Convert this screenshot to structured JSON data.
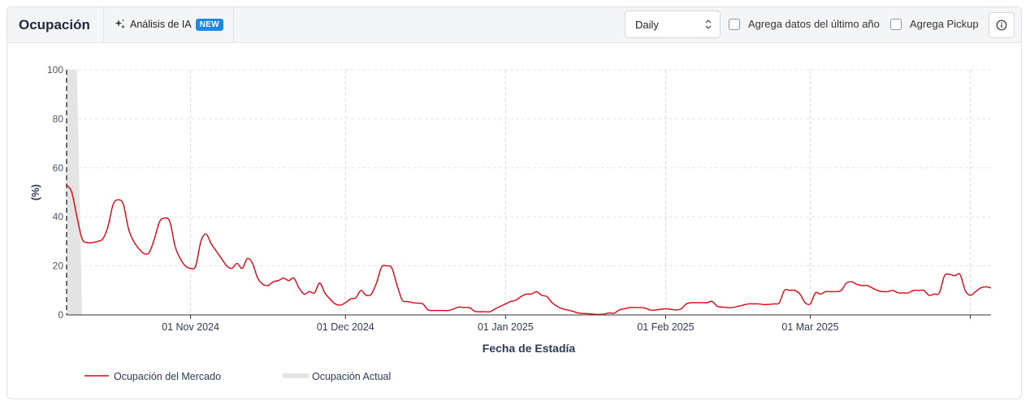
{
  "header": {
    "title": "Ocupación",
    "ai_label": "Análisis de IA",
    "ai_badge": "NEW",
    "granularity": "Daily",
    "check_last_year": "Agrega datos del último año",
    "check_pickup": "Agrega Pickup"
  },
  "colors": {
    "market_line": "#e3000f",
    "actual_fill": "#e4e4e4",
    "accent_badge": "#1e88e5"
  },
  "icons": [
    "sparkle-icon",
    "chevron-updown-icon",
    "info-icon"
  ],
  "chart_data": {
    "type": "line",
    "xlabel": "Fecha de Estadía",
    "ylabel": "(%)",
    "ylim": [
      0,
      100
    ],
    "yticks": [
      0,
      20,
      40,
      60,
      80,
      100
    ],
    "xticks": [
      {
        "date": "2024-11-01",
        "label": "01 Nov 2024"
      },
      {
        "date": "2024-12-01",
        "label": "01 Dec 2024"
      },
      {
        "date": "2025-01-01",
        "label": "01 Jan 2025"
      },
      {
        "date": "2025-02-01",
        "label": "01 Feb 2025"
      },
      {
        "date": "2025-03-01",
        "label": "01 Mar 2025"
      },
      {
        "date": "2025-04-01",
        "label": ""
      }
    ],
    "xlim": [
      "2024-10-08",
      "2025-04-05"
    ],
    "grid": true,
    "legend_position": "bottom-left",
    "today_marker": "2024-10-08",
    "series": [
      {
        "name": "Ocupación del Mercado",
        "kind": "line",
        "points": [
          [
            "2024-10-08",
            53
          ],
          [
            "2024-10-09",
            50
          ],
          [
            "2024-10-10",
            40
          ],
          [
            "2024-10-11",
            31
          ],
          [
            "2024-10-12",
            29.5
          ],
          [
            "2024-10-13",
            29.5
          ],
          [
            "2024-10-14",
            30
          ],
          [
            "2024-10-15",
            31
          ],
          [
            "2024-10-16",
            36
          ],
          [
            "2024-10-17",
            45
          ],
          [
            "2024-10-18",
            47
          ],
          [
            "2024-10-19",
            45
          ],
          [
            "2024-10-20",
            35
          ],
          [
            "2024-10-21",
            30
          ],
          [
            "2024-10-22",
            27
          ],
          [
            "2024-10-23",
            25
          ],
          [
            "2024-10-24",
            25.5
          ],
          [
            "2024-10-25",
            31
          ],
          [
            "2024-10-26",
            38
          ],
          [
            "2024-10-27",
            39.5
          ],
          [
            "2024-10-28",
            38
          ],
          [
            "2024-10-29",
            28
          ],
          [
            "2024-10-30",
            23
          ],
          [
            "2024-10-31",
            20
          ],
          [
            "2024-11-01",
            19
          ],
          [
            "2024-11-02",
            20
          ],
          [
            "2024-11-03",
            30
          ],
          [
            "2024-11-04",
            33
          ],
          [
            "2024-11-05",
            29
          ],
          [
            "2024-11-06",
            26
          ],
          [
            "2024-11-07",
            23
          ],
          [
            "2024-11-08",
            20
          ],
          [
            "2024-11-09",
            19
          ],
          [
            "2024-11-10",
            21
          ],
          [
            "2024-11-11",
            19
          ],
          [
            "2024-11-12",
            23
          ],
          [
            "2024-11-13",
            21
          ],
          [
            "2024-11-14",
            15
          ],
          [
            "2024-11-15",
            12.5
          ],
          [
            "2024-11-16",
            12
          ],
          [
            "2024-11-17",
            13.5
          ],
          [
            "2024-11-18",
            14
          ],
          [
            "2024-11-19",
            15
          ],
          [
            "2024-11-20",
            14
          ],
          [
            "2024-11-21",
            15
          ],
          [
            "2024-11-22",
            11
          ],
          [
            "2024-11-23",
            8.5
          ],
          [
            "2024-11-24",
            9.5
          ],
          [
            "2024-11-25",
            9
          ],
          [
            "2024-11-26",
            13
          ],
          [
            "2024-11-27",
            9
          ],
          [
            "2024-11-28",
            6.5
          ],
          [
            "2024-11-29",
            4.5
          ],
          [
            "2024-11-30",
            4
          ],
          [
            "2024-12-01",
            5
          ],
          [
            "2024-12-02",
            6.5
          ],
          [
            "2024-12-03",
            7
          ],
          [
            "2024-12-04",
            10
          ],
          [
            "2024-12-05",
            8
          ],
          [
            "2024-12-06",
            8.5
          ],
          [
            "2024-12-07",
            13
          ],
          [
            "2024-12-08",
            19.5
          ],
          [
            "2024-12-09",
            20
          ],
          [
            "2024-12-10",
            19
          ],
          [
            "2024-12-11",
            12
          ],
          [
            "2024-12-12",
            6
          ],
          [
            "2024-12-13",
            5.5
          ],
          [
            "2024-12-14",
            5
          ],
          [
            "2024-12-15",
            4.8
          ],
          [
            "2024-12-16",
            4.5
          ],
          [
            "2024-12-17",
            2
          ],
          [
            "2024-12-18",
            1.8
          ],
          [
            "2024-12-19",
            1.8
          ],
          [
            "2024-12-20",
            1.8
          ],
          [
            "2024-12-21",
            1.8
          ],
          [
            "2024-12-22",
            2.5
          ],
          [
            "2024-12-23",
            3.2
          ],
          [
            "2024-12-24",
            3
          ],
          [
            "2024-12-25",
            3
          ],
          [
            "2024-12-26",
            1.5
          ],
          [
            "2024-12-27",
            1.3
          ],
          [
            "2024-12-28",
            1.3
          ],
          [
            "2024-12-29",
            1.3
          ],
          [
            "2024-12-30",
            2.5
          ],
          [
            "2024-12-31",
            3.5
          ],
          [
            "2025-01-01",
            4.5
          ],
          [
            "2025-01-02",
            5.5
          ],
          [
            "2025-01-03",
            6
          ],
          [
            "2025-01-04",
            7.5
          ],
          [
            "2025-01-05",
            8.5
          ],
          [
            "2025-01-06",
            8.5
          ],
          [
            "2025-01-07",
            9.5
          ],
          [
            "2025-01-08",
            8
          ],
          [
            "2025-01-09",
            7.5
          ],
          [
            "2025-01-10",
            5
          ],
          [
            "2025-01-11",
            3.5
          ],
          [
            "2025-01-12",
            2.5
          ],
          [
            "2025-01-13",
            2
          ],
          [
            "2025-01-14",
            1.5
          ],
          [
            "2025-01-15",
            0.8
          ],
          [
            "2025-01-16",
            0.6
          ],
          [
            "2025-01-17",
            0.5
          ],
          [
            "2025-01-18",
            0.3
          ],
          [
            "2025-01-19",
            0.2
          ],
          [
            "2025-01-20",
            0.3
          ],
          [
            "2025-01-21",
            0.8
          ],
          [
            "2025-01-22",
            0.7
          ],
          [
            "2025-01-23",
            2
          ],
          [
            "2025-01-24",
            2.5
          ],
          [
            "2025-01-25",
            3
          ],
          [
            "2025-01-26",
            3
          ],
          [
            "2025-01-27",
            3
          ],
          [
            "2025-01-28",
            2.8
          ],
          [
            "2025-01-29",
            2
          ],
          [
            "2025-01-30",
            2
          ],
          [
            "2025-01-31",
            2.3
          ],
          [
            "2025-02-01",
            2.5
          ],
          [
            "2025-02-02",
            2.3
          ],
          [
            "2025-02-03",
            2
          ],
          [
            "2025-02-04",
            2.5
          ],
          [
            "2025-02-05",
            4.5
          ],
          [
            "2025-02-06",
            5
          ],
          [
            "2025-02-07",
            5
          ],
          [
            "2025-02-08",
            5
          ],
          [
            "2025-02-09",
            5
          ],
          [
            "2025-02-10",
            5.5
          ],
          [
            "2025-02-11",
            3.5
          ],
          [
            "2025-02-12",
            3.2
          ],
          [
            "2025-02-13",
            3
          ],
          [
            "2025-02-14",
            3
          ],
          [
            "2025-02-15",
            3.5
          ],
          [
            "2025-02-16",
            4
          ],
          [
            "2025-02-17",
            4.5
          ],
          [
            "2025-02-18",
            4.5
          ],
          [
            "2025-02-19",
            4.5
          ],
          [
            "2025-02-20",
            4.2
          ],
          [
            "2025-02-21",
            4.3
          ],
          [
            "2025-02-22",
            4.5
          ],
          [
            "2025-02-23",
            5
          ],
          [
            "2025-02-24",
            10
          ],
          [
            "2025-02-25",
            10
          ],
          [
            "2025-02-26",
            10
          ],
          [
            "2025-02-27",
            8.5
          ],
          [
            "2025-02-28",
            5
          ],
          [
            "2025-03-01",
            4.5
          ],
          [
            "2025-03-02",
            9
          ],
          [
            "2025-03-03",
            8.5
          ],
          [
            "2025-03-04",
            9.5
          ],
          [
            "2025-03-05",
            9.5
          ],
          [
            "2025-03-06",
            9.5
          ],
          [
            "2025-03-07",
            10
          ],
          [
            "2025-03-08",
            13
          ],
          [
            "2025-03-09",
            13.5
          ],
          [
            "2025-03-10",
            12.5
          ],
          [
            "2025-03-11",
            12
          ],
          [
            "2025-03-12",
            12
          ],
          [
            "2025-03-13",
            11
          ],
          [
            "2025-03-14",
            10
          ],
          [
            "2025-03-15",
            9.5
          ],
          [
            "2025-03-16",
            9.5
          ],
          [
            "2025-03-17",
            10
          ],
          [
            "2025-03-18",
            9
          ],
          [
            "2025-03-19",
            9
          ],
          [
            "2025-03-20",
            9
          ],
          [
            "2025-03-21",
            10
          ],
          [
            "2025-03-22",
            10
          ],
          [
            "2025-03-23",
            10
          ],
          [
            "2025-03-24",
            8
          ],
          [
            "2025-03-25",
            8.5
          ],
          [
            "2025-03-26",
            9
          ],
          [
            "2025-03-27",
            16
          ],
          [
            "2025-03-28",
            16.5
          ],
          [
            "2025-03-29",
            16
          ],
          [
            "2025-03-30",
            16.5
          ],
          [
            "2025-03-31",
            10
          ],
          [
            "2025-04-01",
            8
          ],
          [
            "2025-04-02",
            9.5
          ],
          [
            "2025-04-03",
            11
          ],
          [
            "2025-04-04",
            11.5
          ],
          [
            "2025-04-05",
            11
          ]
        ]
      },
      {
        "name": "Ocupación Actual",
        "kind": "area",
        "points": [
          [
            "2024-10-08",
            100
          ],
          [
            "2024-10-09",
            100
          ],
          [
            "2024-10-10",
            100
          ],
          [
            "2024-10-11",
            0
          ]
        ]
      }
    ]
  }
}
